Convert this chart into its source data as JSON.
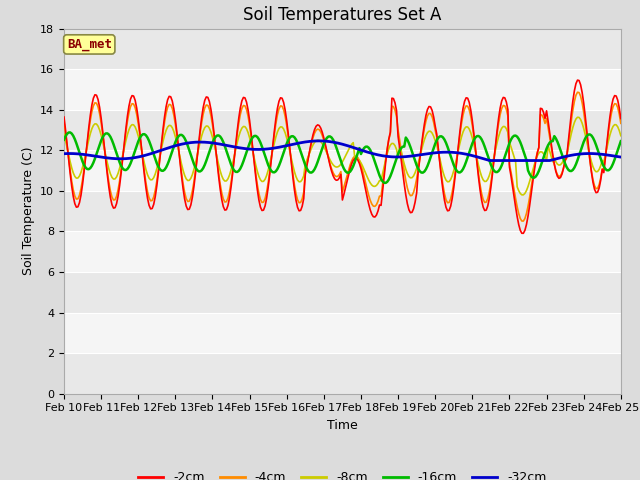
{
  "title": "Soil Temperatures Set A",
  "xlabel": "Time",
  "ylabel": "Soil Temperature (C)",
  "ylim": [
    0,
    18
  ],
  "yticks": [
    0,
    2,
    4,
    6,
    8,
    10,
    12,
    14,
    16,
    18
  ],
  "annotation_text": "BA_met",
  "annotation_color": "#8B0000",
  "annotation_bg": "#FFFF99",
  "series_colors": {
    "-2cm": "#FF0000",
    "-4cm": "#FF8C00",
    "-8cm": "#CCCC00",
    "-16cm": "#00BB00",
    "-32cm": "#0000CC"
  },
  "series_linewidths": {
    "-2cm": 1.2,
    "-4cm": 1.2,
    "-8cm": 1.2,
    "-16cm": 1.8,
    "-32cm": 2.0
  },
  "x_labels": [
    "Feb 10",
    "Feb 11",
    "Feb 12",
    "Feb 13",
    "Feb 14",
    "Feb 15",
    "Feb 16",
    "Feb 17",
    "Feb 18",
    "Feb 19",
    "Feb 20",
    "Feb 21",
    "Feb 22",
    "Feb 23",
    "Feb 24",
    "Feb 25"
  ],
  "background_color": "#DCDCDC",
  "plot_bg_light": "#F5F5F5",
  "plot_bg_dark": "#E8E8E8",
  "grid_color": "#CCCCCC",
  "title_fontsize": 12,
  "axis_label_fontsize": 9,
  "tick_fontsize": 8
}
